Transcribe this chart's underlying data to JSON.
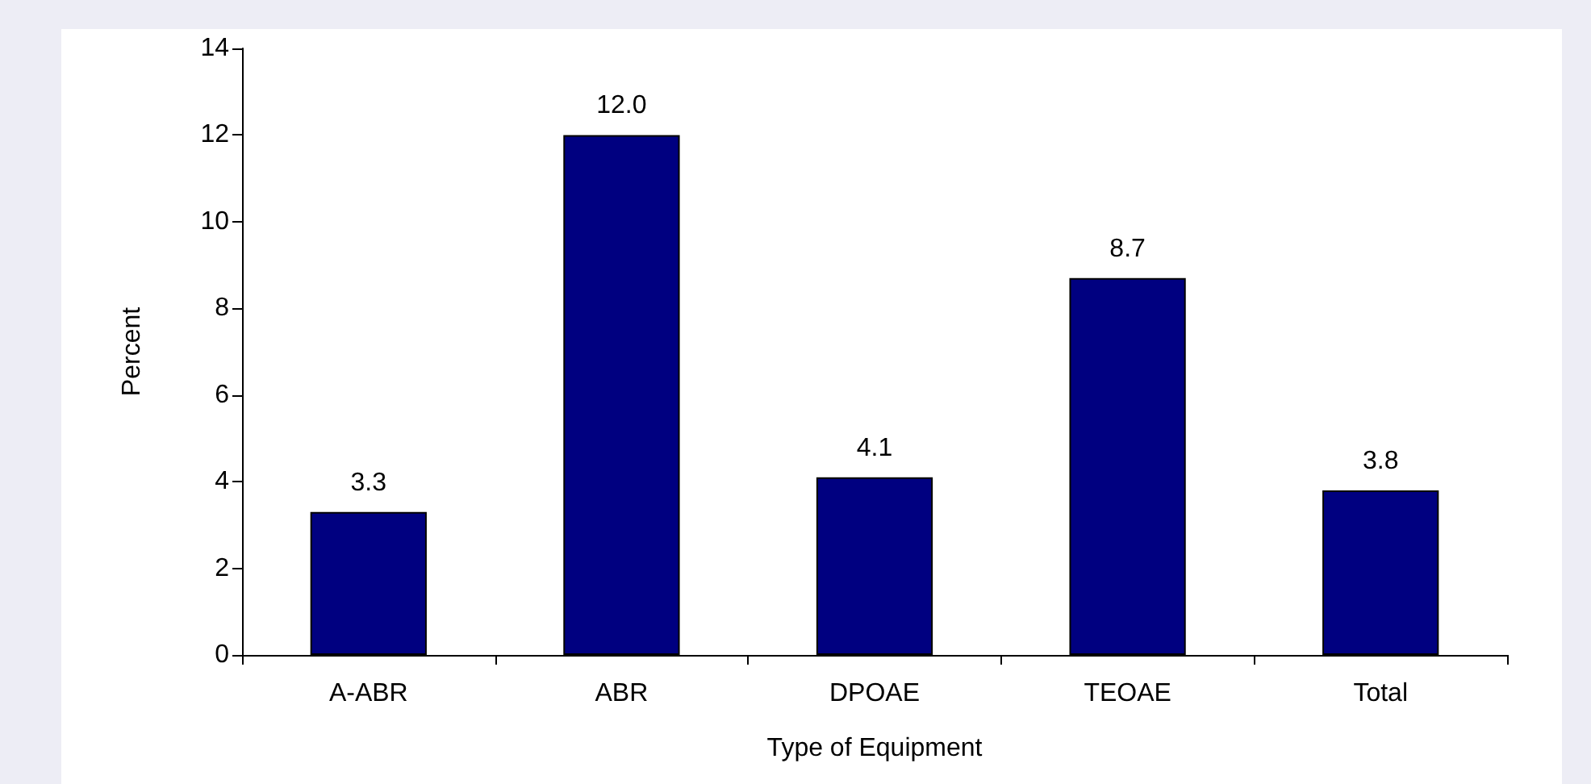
{
  "chart_data": {
    "type": "bar",
    "xlabel": "Type of Equipment",
    "ylabel": "Percent",
    "categories": [
      "A-ABR",
      "ABR",
      "DPOAE",
      "TEOAE",
      "Total"
    ],
    "values": [
      3.3,
      12.0,
      4.1,
      8.7,
      3.8
    ],
    "value_labels": [
      "3.3",
      "12.0",
      "4.1",
      "8.7",
      "3.8"
    ],
    "color": "#000080",
    "ylim": [
      0,
      14
    ],
    "yticks": [
      0,
      2,
      4,
      6,
      8,
      10,
      12,
      14
    ],
    "grid": false
  }
}
